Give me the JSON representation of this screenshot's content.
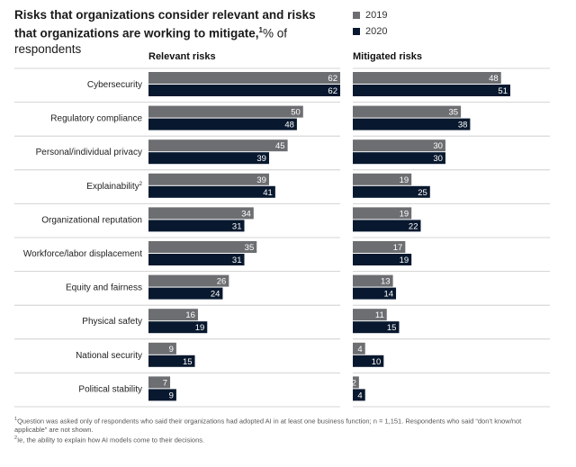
{
  "title": {
    "main": "Risks that organizations consider relevant and risks that organizations are working to mitigate,",
    "sup": "1",
    "suffix": "% of respondents"
  },
  "legend": [
    {
      "label": "2019",
      "color": "#6c6e71"
    },
    {
      "label": "2020",
      "color": "#08182e"
    }
  ],
  "colors": {
    "y2019": "#6c6e71",
    "y2020": "#08182e",
    "gridline": "#c8c8c8"
  },
  "footnotes": [
    {
      "sup": "1",
      "text": "Question was asked only of respondents who said their organizations had adopted AI in at least one business function; n = 1,151. Respondents who said “don’t know/not applicable” are not shown."
    },
    {
      "sup": "2",
      "text": "Ie, the ability to explain how AI models come to their decisions."
    }
  ],
  "chart_data": {
    "type": "bar",
    "orientation": "horizontal",
    "title": "Risks that organizations consider relevant and risks that organizations are working to mitigate, % of respondents",
    "categories": [
      "Cybersecurity",
      "Regulatory compliance",
      "Personal/individual privacy",
      "Explainability",
      "Organizational reputation",
      "Workforce/labor displacement",
      "Equity and fairness",
      "Physical safety",
      "National security",
      "Political stability"
    ],
    "category_sups": [
      "",
      "",
      "",
      "2",
      "",
      "",
      "",
      "",
      "",
      ""
    ],
    "panels": [
      {
        "name": "Relevant risks",
        "xlim": [
          0,
          62
        ],
        "series": [
          {
            "name": "2019",
            "values": [
              62,
              50,
              45,
              39,
              34,
              35,
              26,
              16,
              9,
              7
            ]
          },
          {
            "name": "2020",
            "values": [
              62,
              48,
              39,
              41,
              31,
              31,
              24,
              19,
              15,
              9
            ]
          }
        ]
      },
      {
        "name": "Mitigated risks",
        "xlim": [
          0,
          51
        ],
        "series": [
          {
            "name": "2019",
            "values": [
              48,
              35,
              30,
              19,
              19,
              17,
              13,
              11,
              4,
              2
            ]
          },
          {
            "name": "2020",
            "values": [
              51,
              38,
              30,
              25,
              22,
              19,
              14,
              15,
              10,
              4
            ]
          }
        ]
      }
    ]
  }
}
